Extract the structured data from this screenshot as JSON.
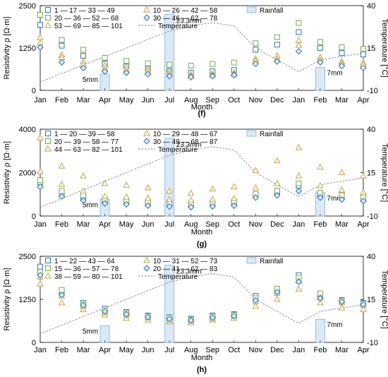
{
  "chart_data": [
    {
      "type": "scatter",
      "panel_label": "(f)",
      "xlabel": "Month",
      "ylabel": "Resistivity ρ [Ω·m]",
      "y2label": "Temperature [°C]",
      "categories": [
        "Jan",
        "Feb",
        "Mar",
        "Apr",
        "May",
        "Jun",
        "Jul",
        "Aug",
        "Sep",
        "Oct",
        "Nov",
        "Dec",
        "Jan",
        "Feb",
        "Mar",
        "Apr"
      ],
      "ylim": [
        0,
        2500
      ],
      "yticks": [
        "0",
        "1250",
        "2500"
      ],
      "y2lim": [
        -10,
        40
      ],
      "y2ticks": [
        "-10",
        "15",
        "40"
      ],
      "legend": {
        "series": [
          "1 — 17 — 33 — 49",
          "20 — 36 — 52 — 68",
          "53 — 69 — 85 — 101",
          "10 — 26 — 42 — 58",
          "30 — 46 — 62 — 78"
        ],
        "rainfall": "Rainfall",
        "temperature": "Temperature"
      },
      "series": [
        {
          "name": "1 — 17 — 33 — 49",
          "marker": "square",
          "color": "#2e75b6",
          "values": [
            1930,
            1320,
            1020,
            790,
            710,
            640,
            570,
            520,
            560,
            600,
            1200,
            1350,
            1720,
            1250,
            1100,
            1060
          ]
        },
        {
          "name": "20 — 36 — 52 — 68",
          "marker": "square",
          "color": "#70ad47",
          "values": [
            2230,
            1490,
            1200,
            960,
            870,
            800,
            760,
            730,
            780,
            820,
            1390,
            1570,
            1990,
            1430,
            1270,
            1220
          ]
        },
        {
          "name": "53 — 69 — 85 — 101",
          "marker": "triangle",
          "color": "#c8a23c",
          "values": [
            1560,
            1050,
            850,
            730,
            690,
            640,
            560,
            470,
            490,
            520,
            930,
            1010,
            1470,
            980,
            850,
            820
          ]
        },
        {
          "name": "10 — 26 — 42 — 58",
          "marker": "triangle",
          "color": "#c8a23c",
          "values": [
            1400,
            970,
            760,
            640,
            600,
            560,
            480,
            420,
            450,
            480,
            870,
            920,
            1330,
            900,
            800,
            760
          ]
        },
        {
          "name": "30 — 46 — 62 — 78",
          "marker": "diamond",
          "color": "#2e75b6",
          "values": [
            1270,
            830,
            660,
            560,
            520,
            480,
            420,
            390,
            420,
            450,
            780,
            850,
            1150,
            830,
            720,
            660
          ]
        }
      ],
      "temperature_values": [
        -5,
        0,
        5,
        10,
        15,
        20,
        25,
        28,
        30,
        28,
        15,
        8,
        1,
        8,
        10,
        12
      ],
      "rainfall_bars": [
        {
          "month": "Apr",
          "value_mm": 5,
          "label": "5mm"
        },
        {
          "month": "Jul",
          "value_mm": 23.3,
          "label": "23.3mm"
        },
        {
          "month": "Feb",
          "value_mm": 7,
          "label": "7mm"
        }
      ]
    },
    {
      "type": "scatter",
      "panel_label": "(g)",
      "xlabel": "Month",
      "ylabel": "Resistivity ρ [Ω·m]",
      "y2label": "Temperature [°C]",
      "categories": [
        "Jan",
        "Feb",
        "Mar",
        "Apr",
        "May",
        "Jun",
        "Jul",
        "Aug",
        "Sep",
        "Oct",
        "Nov",
        "Dec",
        "Jan",
        "Feb",
        "Mar",
        "Apr"
      ],
      "ylim": [
        0,
        4000
      ],
      "yticks": [
        "0",
        "2000",
        "4000"
      ],
      "y2lim": [
        -10,
        40
      ],
      "y2ticks": [
        "-10",
        "15",
        "40"
      ],
      "legend": {
        "series": [
          "1 — 20 — 39 — 58",
          "20 — 39 — 58 — 77",
          "44 — 63 — 82 — 101",
          "10 — 29 — 48 — 67",
          "30 — 49 — 68 — 87"
        ],
        "rainfall": "Rainfall",
        "temperature": "Temperature"
      },
      "series": [
        {
          "name": "1 — 20 — 39 — 58",
          "marker": "square",
          "color": "#2e75b6",
          "values": [
            1550,
            1050,
            850,
            700,
            650,
            600,
            560,
            520,
            560,
            620,
            950,
            1100,
            1400,
            1000,
            900,
            800
          ]
        },
        {
          "name": "20 — 39 — 58 — 77",
          "marker": "square",
          "color": "#70ad47",
          "values": [
            1650,
            1150,
            950,
            770,
            720,
            660,
            610,
            570,
            610,
            670,
            1020,
            1170,
            1500,
            1070,
            960,
            860
          ]
        },
        {
          "name": "44 — 63 — 82 — 101",
          "marker": "triangle",
          "color": "#c8a23c",
          "values": [
            3600,
            2300,
            1850,
            1500,
            1420,
            1300,
            1150,
            1050,
            1250,
            1350,
            2100,
            2550,
            3150,
            2250,
            2000,
            1850
          ]
        },
        {
          "name": "10 — 29 — 48 — 67",
          "marker": "triangle",
          "color": "#c8a23c",
          "values": [
            2050,
            1450,
            1150,
            900,
            870,
            820,
            760,
            720,
            760,
            800,
            1300,
            1500,
            1850,
            1400,
            1200,
            1080
          ]
        },
        {
          "name": "30 — 49 — 68 — 87",
          "marker": "diamond",
          "color": "#2e75b6",
          "values": [
            1350,
            900,
            720,
            580,
            540,
            480,
            440,
            410,
            440,
            480,
            850,
            950,
            1150,
            850,
            760,
            690
          ]
        }
      ],
      "temperature_values": [
        -5,
        0,
        5,
        10,
        15,
        20,
        25,
        28,
        30,
        28,
        15,
        8,
        1,
        8,
        10,
        12
      ],
      "rainfall_bars": [
        {
          "month": "Apr",
          "value_mm": 5,
          "label": "5mm"
        },
        {
          "month": "Jul",
          "value_mm": 23.3,
          "label": "23.3mm"
        },
        {
          "month": "Feb",
          "value_mm": 7,
          "label": "7mm"
        }
      ]
    },
    {
      "type": "scatter",
      "panel_label": "(h)",
      "xlabel": "Month",
      "ylabel": "Resistivity ρ [Ω·m]",
      "y2label": "Temperature [°C]",
      "categories": [
        "Jan",
        "Feb",
        "Mar",
        "Apr",
        "May",
        "Jun",
        "Jul",
        "Aug",
        "Sep",
        "Oct",
        "Nov",
        "Dec",
        "Jan",
        "Feb",
        "Mar",
        "Apr"
      ],
      "ylim": [
        0,
        2500
      ],
      "yticks": [
        "0",
        "1250",
        "2500"
      ],
      "y2lim": [
        -10,
        40
      ],
      "y2ticks": [
        "-10",
        "15",
        "40"
      ],
      "legend": {
        "series": [
          "1 — 22 — 43 — 64",
          "15 — 36 — 57 — 78",
          "38 — 59 — 80 — 101",
          "10 — 31 — 52 — 73",
          "20 — 41 — 62 — 83"
        ],
        "rainfall": "Rainfall",
        "temperature": "Temperature"
      },
      "series": [
        {
          "name": "1 — 22 — 43 — 64",
          "marker": "square",
          "color": "#2e75b6",
          "values": [
            2200,
            1450,
            1150,
            980,
            880,
            780,
            730,
            690,
            780,
            820,
            1350,
            1500,
            1950,
            1350,
            1230,
            1150
          ]
        },
        {
          "name": "15 — 36 — 57 — 78",
          "marker": "square",
          "color": "#70ad47",
          "values": [
            2050,
            1520,
            1100,
            930,
            850,
            760,
            720,
            660,
            750,
            800,
            1280,
            1560,
            1880,
            1420,
            1200,
            1120
          ]
        },
        {
          "name": "38 — 59 — 80 — 101",
          "marker": "triangle",
          "color": "#c8a23c",
          "values": [
            1700,
            1150,
            950,
            800,
            700,
            650,
            600,
            570,
            650,
            700,
            1050,
            1250,
            1550,
            1150,
            1000,
            950
          ]
        },
        {
          "name": "10 — 31 — 52 — 73",
          "marker": "triangle",
          "color": "#c8a23c",
          "values": [
            1900,
            1350,
            1050,
            870,
            790,
            720,
            650,
            620,
            700,
            750,
            1180,
            1420,
            1780,
            1300,
            1150,
            1080
          ]
        },
        {
          "name": "20 — 41 — 62 — 83",
          "marker": "diamond",
          "color": "#2e75b6",
          "values": [
            1950,
            1380,
            1080,
            900,
            820,
            730,
            680,
            640,
            720,
            770,
            1220,
            1460,
            1760,
            1280,
            1180,
            1100
          ]
        }
      ],
      "temperature_values": [
        -5,
        0,
        5,
        10,
        15,
        20,
        25,
        28,
        30,
        28,
        15,
        8,
        1,
        8,
        10,
        12
      ],
      "rainfall_bars": [
        {
          "month": "Apr",
          "value_mm": 5,
          "label": "5mm"
        },
        {
          "month": "Jul",
          "value_mm": 23.3,
          "label": "23.3mm"
        },
        {
          "month": "Feb",
          "value_mm": 7,
          "label": "7mm"
        }
      ]
    }
  ],
  "colors": {
    "series_blue": "#2e75b6",
    "series_green": "#70ad47",
    "series_gold": "#c8a23c",
    "rainfall_fill": "#dbe9f6",
    "rainfall_stroke": "#7fb0dc",
    "rainfall_label": "#2e75b6",
    "temperature_line": "#808080"
  }
}
